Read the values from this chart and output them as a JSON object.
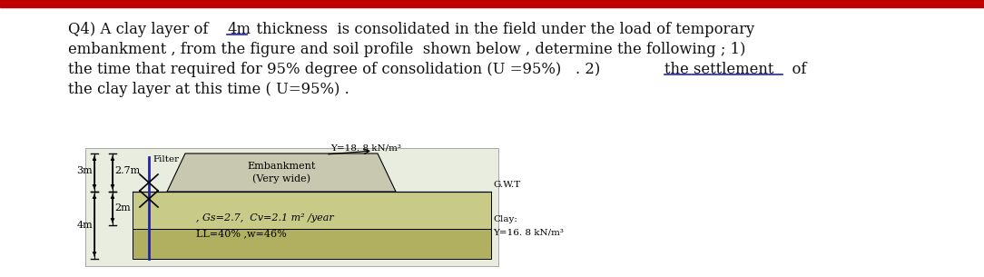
{
  "background_color": "#ffffff",
  "red_bar_color": "#c00000",
  "title_lines": [
    "Q4) A clay layer of ¯4m  thickness  is consolidated in the field under the load of temporary",
    "embankment , from the figure and soil profile  shown below , determine the following ; 1)",
    "the time that required for 95% degree of consolidation (U =95%)   . 2) the settlement  of",
    "the clay layer at this time ( U=95%) ."
  ],
  "fig_bg": "#e8ede0",
  "fig_bg2": "#d8e0c8",
  "embankment_fill": "#c8c8b0",
  "clay_fill_top": "#c8ca88",
  "clay_fill_bot": "#b0b060",
  "blue_line_color": "#2222aa",
  "text_color": "#111111",
  "diagram": {
    "gamma_embankment": "Y=18. 8 kN/m³",
    "filter_label": "Filter",
    "embankment_label": "Embankment\n(Very wide)",
    "gwt_label": "G.W.T",
    "clay_label": "Clay:",
    "gamma_clay": "Y=16. 8 kN/m³",
    "gs_cv_label": ", Gs=2.7,  Cv=2.1 m² /year",
    "ll_wn_label": "LL=40% ,w=46%",
    "dim_3m": "3m",
    "dim_27m": "2.7m",
    "dim_2m": "2m",
    "dim_4m": "4m"
  }
}
